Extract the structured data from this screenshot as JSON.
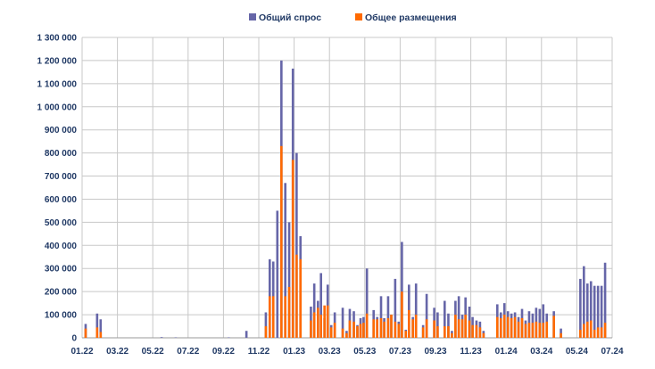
{
  "chart_data": {
    "type": "bar",
    "title": "",
    "xlabel": "",
    "ylabel": "",
    "ylim": [
      0,
      1300000
    ],
    "yticks": [
      0,
      100000,
      200000,
      300000,
      400000,
      500000,
      600000,
      700000,
      800000,
      900000,
      1000000,
      1100000,
      1200000,
      1300000
    ],
    "ytick_labels": [
      "0",
      "100 000",
      "200 000",
      "300 000",
      "400 000",
      "500 000",
      "600 000",
      "700 000",
      "800 000",
      "900 000",
      "1 000 000",
      "1 100 000",
      "1 200 000",
      "1 300 000"
    ],
    "xtick_labels": [
      "01.22",
      "03.22",
      "05.22",
      "07.22",
      "09.22",
      "11.22",
      "01.23",
      "03.23",
      "05.23",
      "07.23",
      "09.23",
      "11.23",
      "01.24",
      "03.24",
      "05.24",
      "07.24"
    ],
    "x_units": "months since 01.22 (month index)",
    "grid": true,
    "legend_position": "top-center",
    "colors": {
      "demand": "#6666a8",
      "placement": "#ff6a00",
      "grid": "#c8c8c8",
      "text": "#1f3864"
    },
    "series": [
      {
        "name": "Общий спрос",
        "key": "demand",
        "points": [
          [
            0.2,
            60000
          ],
          [
            0.85,
            105000
          ],
          [
            1.05,
            80000
          ],
          [
            4.5,
            3000
          ],
          [
            5.3,
            2000
          ],
          [
            8.3,
            2000
          ],
          [
            9.3,
            30000
          ],
          [
            10.4,
            110000
          ],
          [
            10.62,
            340000
          ],
          [
            10.82,
            330000
          ],
          [
            11.05,
            550000
          ],
          [
            11.28,
            1200000
          ],
          [
            11.5,
            670000
          ],
          [
            11.72,
            500000
          ],
          [
            11.93,
            1165000
          ],
          [
            12.14,
            800000
          ],
          [
            12.36,
            440000
          ],
          [
            12.95,
            135000
          ],
          [
            13.14,
            235000
          ],
          [
            13.35,
            160000
          ],
          [
            13.52,
            280000
          ],
          [
            13.72,
            85000
          ],
          [
            13.9,
            230000
          ],
          [
            14.1,
            55000
          ],
          [
            14.3,
            110000
          ],
          [
            14.75,
            130000
          ],
          [
            14.97,
            30000
          ],
          [
            15.15,
            125000
          ],
          [
            15.38,
            115000
          ],
          [
            15.58,
            55000
          ],
          [
            15.76,
            85000
          ],
          [
            15.93,
            90000
          ],
          [
            16.12,
            300000
          ],
          [
            16.5,
            120000
          ],
          [
            16.7,
            90000
          ],
          [
            16.92,
            180000
          ],
          [
            17.1,
            85000
          ],
          [
            17.32,
            180000
          ],
          [
            17.5,
            100000
          ],
          [
            17.72,
            255000
          ],
          [
            17.92,
            70000
          ],
          [
            18.1,
            415000
          ],
          [
            18.32,
            35000
          ],
          [
            18.5,
            230000
          ],
          [
            18.72,
            90000
          ],
          [
            18.9,
            235000
          ],
          [
            19.3,
            55000
          ],
          [
            19.5,
            190000
          ],
          [
            19.93,
            130000
          ],
          [
            20.12,
            110000
          ],
          [
            20.52,
            160000
          ],
          [
            20.73,
            105000
          ],
          [
            20.93,
            30000
          ],
          [
            21.13,
            160000
          ],
          [
            21.32,
            180000
          ],
          [
            21.52,
            100000
          ],
          [
            21.7,
            175000
          ],
          [
            21.92,
            135000
          ],
          [
            22.1,
            90000
          ],
          [
            22.32,
            75000
          ],
          [
            22.52,
            70000
          ],
          [
            22.72,
            30000
          ],
          [
            23.5,
            145000
          ],
          [
            23.7,
            110000
          ],
          [
            23.9,
            150000
          ],
          [
            24.1,
            115000
          ],
          [
            24.3,
            105000
          ],
          [
            24.5,
            110000
          ],
          [
            24.7,
            90000
          ],
          [
            24.9,
            125000
          ],
          [
            25.1,
            75000
          ],
          [
            25.3,
            115000
          ],
          [
            25.5,
            105000
          ],
          [
            25.7,
            130000
          ],
          [
            25.9,
            125000
          ],
          [
            26.1,
            145000
          ],
          [
            26.3,
            105000
          ],
          [
            26.7,
            115000
          ],
          [
            27.1,
            40000
          ],
          [
            28.2,
            255000
          ],
          [
            28.4,
            310000
          ],
          [
            28.6,
            235000
          ],
          [
            28.8,
            245000
          ],
          [
            29.0,
            225000
          ],
          [
            29.2,
            225000
          ],
          [
            29.4,
            225000
          ],
          [
            29.6,
            325000
          ]
        ]
      },
      {
        "name": "Общее размещения",
        "key": "placement",
        "points": [
          [
            0.2,
            40000
          ],
          [
            0.85,
            45000
          ],
          [
            1.05,
            25000
          ],
          [
            10.4,
            50000
          ],
          [
            10.62,
            180000
          ],
          [
            10.82,
            180000
          ],
          [
            11.05,
            0
          ],
          [
            11.28,
            830000
          ],
          [
            11.5,
            180000
          ],
          [
            11.72,
            220000
          ],
          [
            11.93,
            770000
          ],
          [
            12.14,
            360000
          ],
          [
            12.36,
            340000
          ],
          [
            12.95,
            75000
          ],
          [
            13.14,
            110000
          ],
          [
            13.35,
            130000
          ],
          [
            13.52,
            100000
          ],
          [
            13.72,
            140000
          ],
          [
            13.9,
            140000
          ],
          [
            14.1,
            45000
          ],
          [
            14.3,
            65000
          ],
          [
            14.75,
            40000
          ],
          [
            14.97,
            20000
          ],
          [
            15.15,
            75000
          ],
          [
            15.38,
            70000
          ],
          [
            15.58,
            50000
          ],
          [
            15.76,
            60000
          ],
          [
            15.93,
            65000
          ],
          [
            16.12,
            105000
          ],
          [
            16.5,
            80000
          ],
          [
            16.7,
            80000
          ],
          [
            16.92,
            85000
          ],
          [
            17.1,
            70000
          ],
          [
            17.32,
            85000
          ],
          [
            17.5,
            100000
          ],
          [
            17.72,
            70000
          ],
          [
            17.92,
            60000
          ],
          [
            18.1,
            200000
          ],
          [
            18.32,
            30000
          ],
          [
            18.5,
            120000
          ],
          [
            18.72,
            80000
          ],
          [
            18.9,
            100000
          ],
          [
            19.3,
            45000
          ],
          [
            19.5,
            80000
          ],
          [
            19.93,
            75000
          ],
          [
            20.12,
            50000
          ],
          [
            20.52,
            50000
          ],
          [
            20.73,
            50000
          ],
          [
            20.93,
            20000
          ],
          [
            21.13,
            100000
          ],
          [
            21.32,
            80000
          ],
          [
            21.52,
            80000
          ],
          [
            21.7,
            100000
          ],
          [
            21.92,
            75000
          ],
          [
            22.1,
            55000
          ],
          [
            22.32,
            55000
          ],
          [
            22.52,
            45000
          ],
          [
            22.72,
            20000
          ],
          [
            23.5,
            90000
          ],
          [
            23.7,
            85000
          ],
          [
            23.9,
            100000
          ],
          [
            24.1,
            90000
          ],
          [
            24.3,
            85000
          ],
          [
            24.5,
            90000
          ],
          [
            24.7,
            70000
          ],
          [
            24.9,
            85000
          ],
          [
            25.1,
            60000
          ],
          [
            25.3,
            65000
          ],
          [
            25.5,
            65000
          ],
          [
            25.7,
            70000
          ],
          [
            25.9,
            65000
          ],
          [
            26.1,
            65000
          ],
          [
            26.3,
            70000
          ],
          [
            26.7,
            95000
          ],
          [
            27.1,
            20000
          ],
          [
            28.2,
            35000
          ],
          [
            28.4,
            60000
          ],
          [
            28.6,
            70000
          ],
          [
            28.8,
            75000
          ],
          [
            29.0,
            35000
          ],
          [
            29.2,
            45000
          ],
          [
            29.4,
            45000
          ],
          [
            29.6,
            65000
          ]
        ]
      }
    ]
  }
}
